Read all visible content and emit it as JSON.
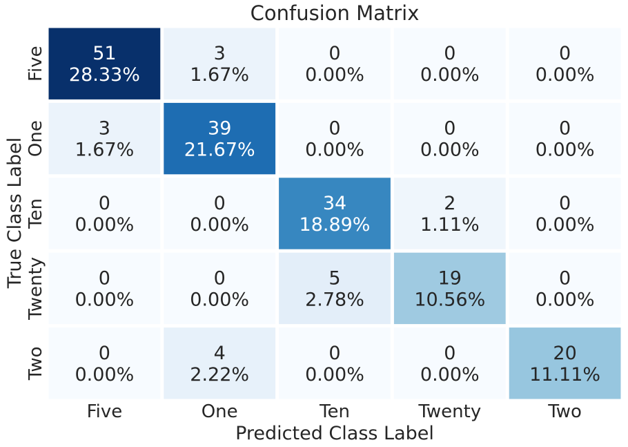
{
  "chart_data": {
    "type": "heatmap",
    "title": "Confusion Matrix",
    "xlabel": "Predicted Class Label",
    "ylabel": "True Class Label",
    "x_categories": [
      "Five",
      "One",
      "Ten",
      "Twenty",
      "Two"
    ],
    "y_categories": [
      "Five",
      "One",
      "Ten",
      "Twenty",
      "Two"
    ],
    "values": [
      [
        51,
        3,
        0,
        0,
        0
      ],
      [
        3,
        39,
        0,
        0,
        0
      ],
      [
        0,
        0,
        34,
        2,
        0
      ],
      [
        0,
        0,
        5,
        19,
        0
      ],
      [
        0,
        4,
        0,
        0,
        20
      ]
    ],
    "percent_labels": [
      [
        "28.33%",
        "1.67%",
        "0.00%",
        "0.00%",
        "0.00%"
      ],
      [
        "1.67%",
        "21.67%",
        "0.00%",
        "0.00%",
        "0.00%"
      ],
      [
        "0.00%",
        "0.00%",
        "18.89%",
        "1.11%",
        "0.00%"
      ],
      [
        "0.00%",
        "0.00%",
        "2.78%",
        "10.56%",
        "0.00%"
      ],
      [
        "0.00%",
        "2.22%",
        "0.00%",
        "0.00%",
        "11.11%"
      ]
    ],
    "colormap": "Blues",
    "colorbar": false
  }
}
